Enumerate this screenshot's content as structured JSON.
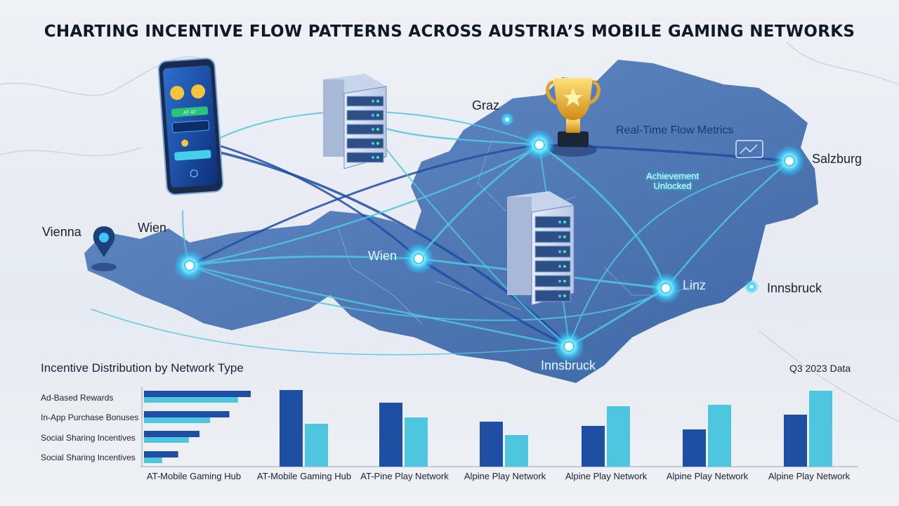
{
  "title": "CHARTING INCENTIVE FLOW PATTERNS ACROSS AUSTRIA’S MOBILE GAMING NETWORKS",
  "map": {
    "cities": [
      "Graz",
      "Salzburg",
      "Vienna",
      "Wien",
      "Wien",
      "Linz",
      "Innsbruck",
      "Innsbruck"
    ],
    "metrics_label": "Real-Time Flow Metrics",
    "achievement_line1": "Achievement",
    "achievement_line2": "Unlocked",
    "phone_screen": "AT 47"
  },
  "colors": {
    "dark_blue": "#1f4fa3",
    "light_blue": "#4fc6e0",
    "glow": "#2ad0ff",
    "map_fill": "#3f6aae"
  },
  "chart_data": [
    {
      "type": "bar",
      "orientation": "horizontal",
      "title": "Incentive Distribution by Network Type",
      "categories": [
        "Ad-Based Rewards",
        "In-App Purchase Bonuses",
        "Social Sharing Incentives",
        "Social Sharing Incentives"
      ],
      "series": [
        {
          "values": [
            100,
            80,
            52,
            32
          ]
        },
        {
          "values": [
            88,
            62,
            42,
            17
          ]
        }
      ],
      "xlim": [
        0,
        100
      ]
    },
    {
      "type": "bar",
      "title": "",
      "annotation": "Q3 2023 Data",
      "categories": [
        "AT-Mobile Gaming Hub",
        "AT-Mobile Gaming Hub",
        "AT-Pine Play Network",
        "Alpine Play Network",
        "Alpine Play Network",
        "Alpine Play Network",
        "Alpine Play Network"
      ],
      "series": [
        {
          "values": [
            null,
            109,
            91,
            64,
            58,
            53,
            74
          ]
        },
        {
          "values": [
            null,
            61,
            70,
            45,
            86,
            88,
            108
          ]
        }
      ],
      "ylim": [
        0,
        115
      ]
    }
  ]
}
